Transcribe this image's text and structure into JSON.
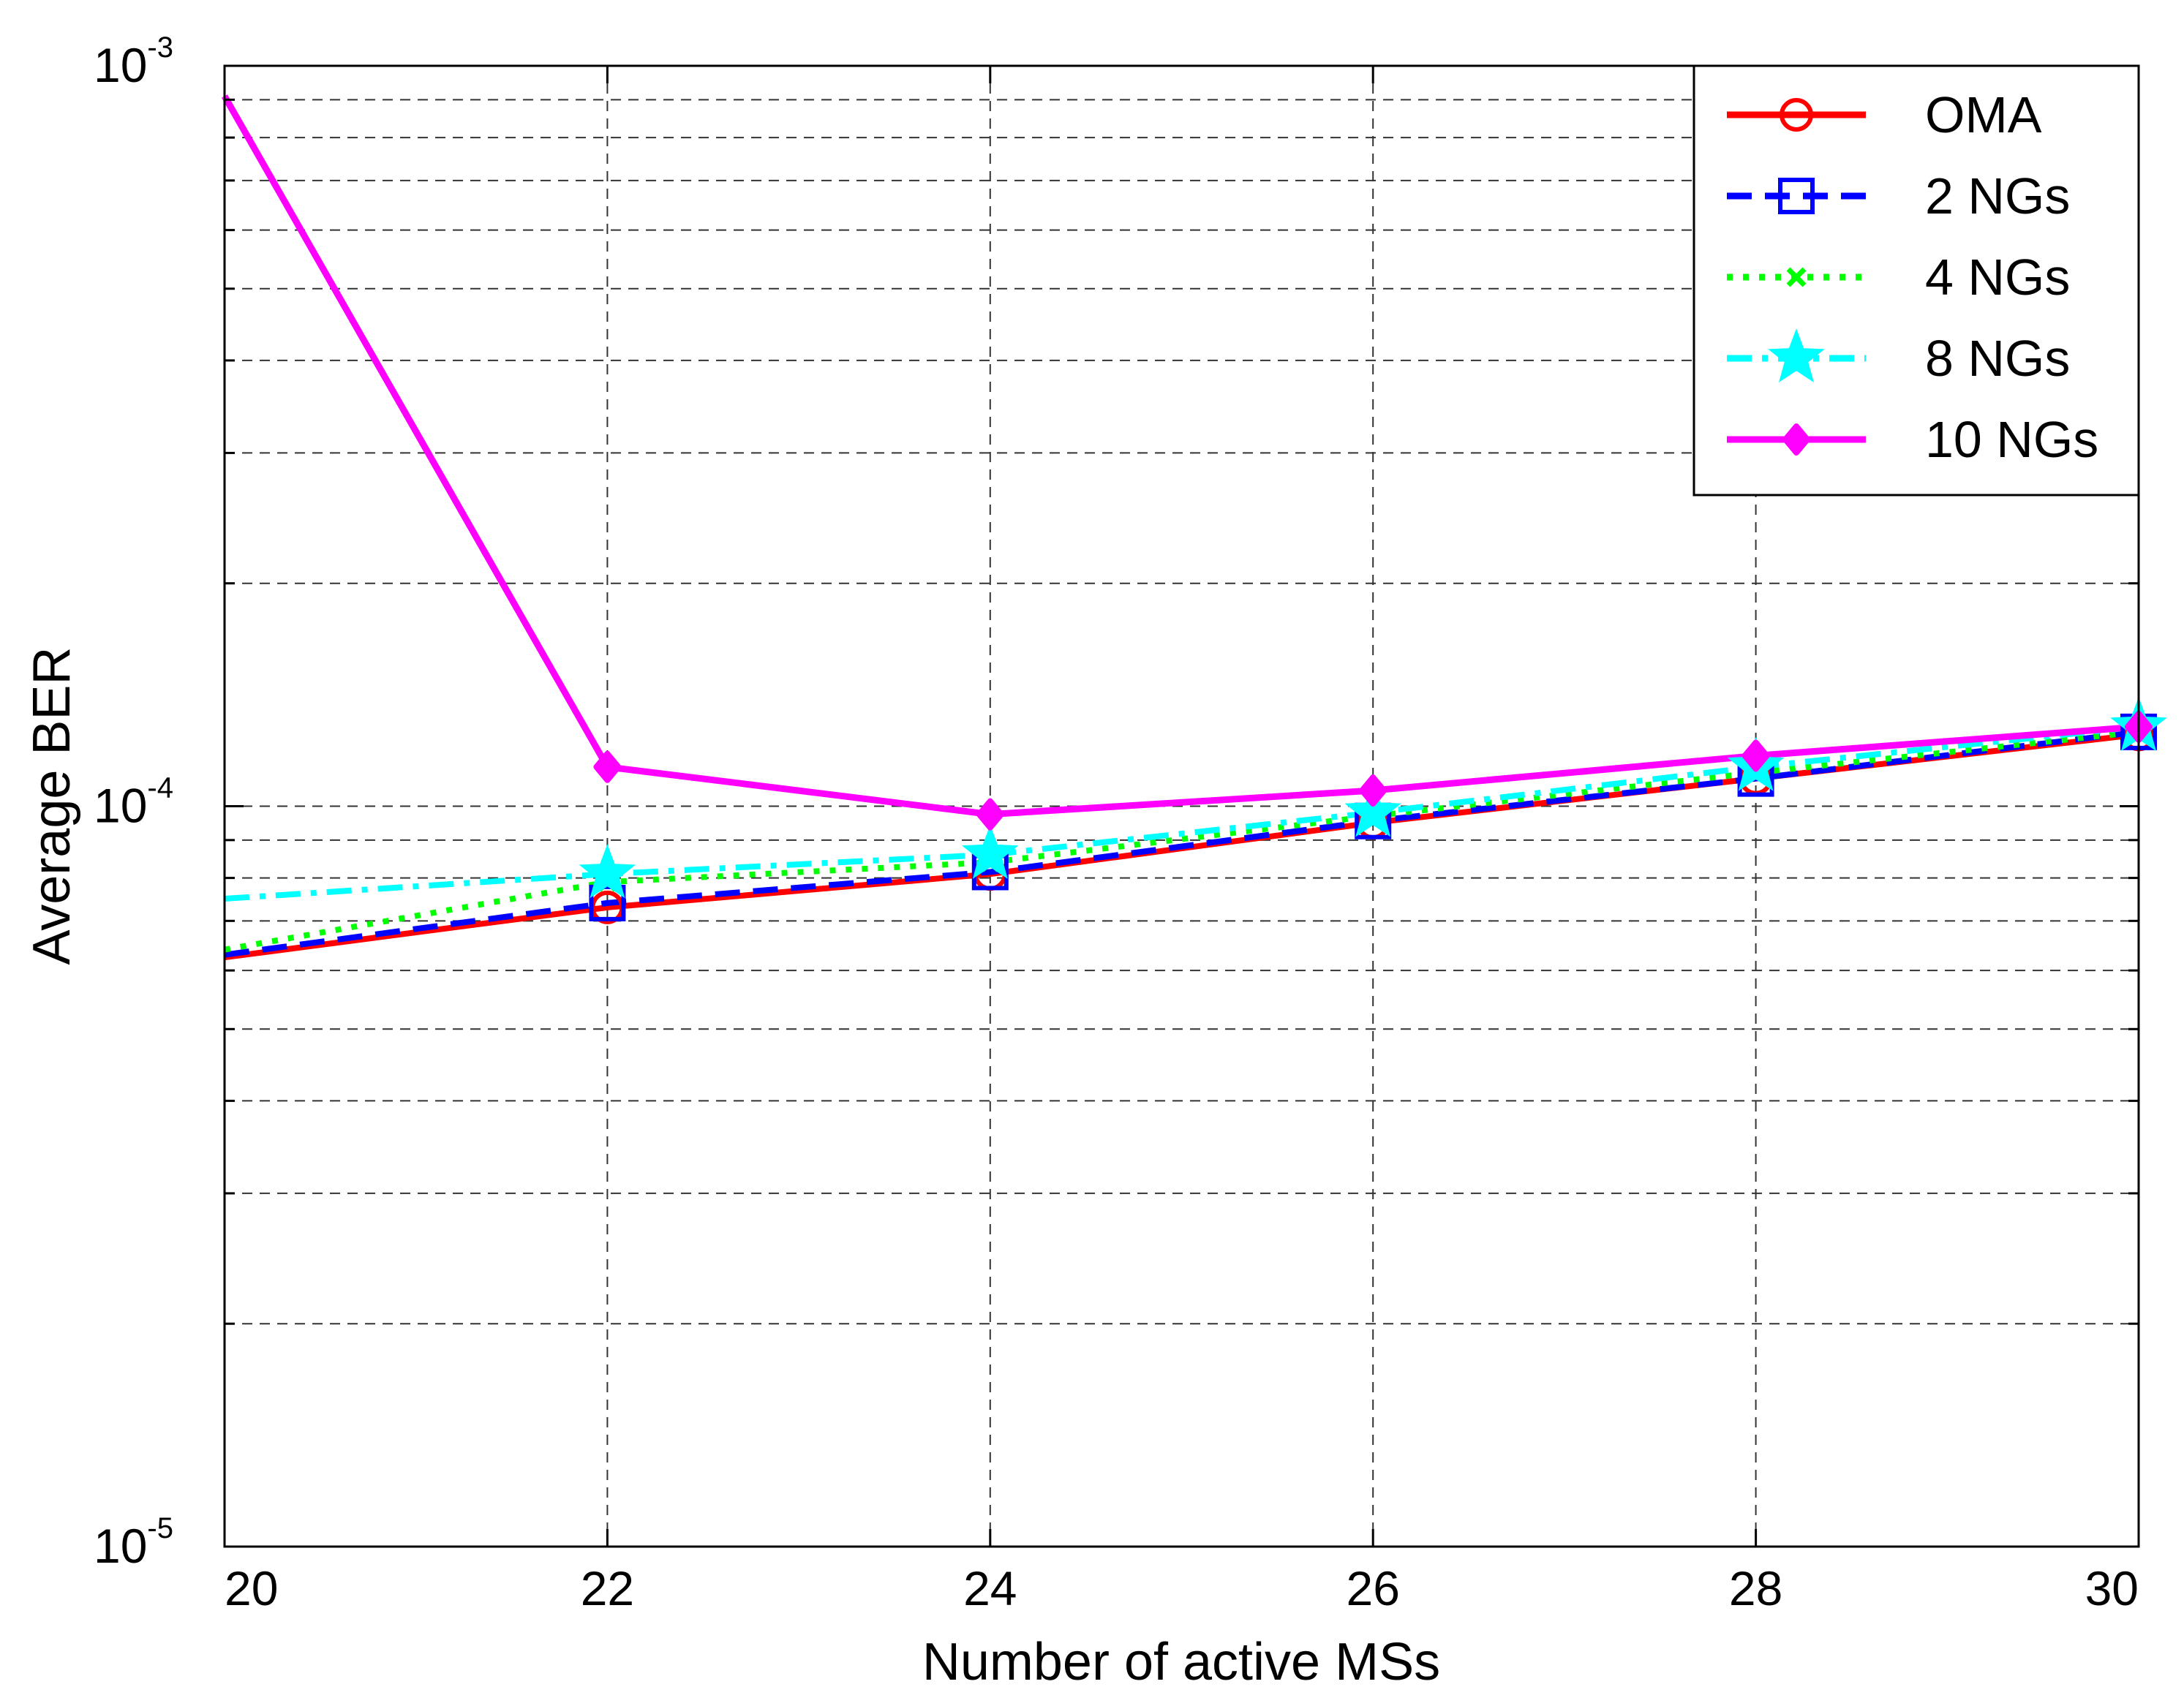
{
  "chart_data": {
    "type": "line",
    "xlabel": "Number of active MSs",
    "ylabel": "Average BER",
    "xlim": [
      20,
      30
    ],
    "ylim": [
      1e-05,
      0.001
    ],
    "yscale": "log",
    "grid": true,
    "legend_position": "top-right",
    "x_ticks": [
      "20",
      "22",
      "24",
      "26",
      "28",
      "30"
    ],
    "y_ticks": [
      {
        "base": "10",
        "exponent": "-5",
        "value": 1e-05
      },
      {
        "base": "10",
        "exponent": "-4",
        "value": 0.0001
      },
      {
        "base": "10",
        "exponent": "-3",
        "value": 0.001
      }
    ],
    "x": [
      20,
      22,
      24,
      26,
      28,
      30
    ],
    "series": [
      {
        "name": "OMA",
        "color": "#ff0000",
        "dash": "solid",
        "marker": "circle",
        "values": [
          6.25e-05,
          7.3e-05,
          8.1e-05,
          9.5e-05,
          0.000109,
          0.000125
        ]
      },
      {
        "name": "2 NGs",
        "color": "#0000ff",
        "dash": "dashed",
        "marker": "square",
        "values": [
          6.3e-05,
          7.4e-05,
          8.15e-05,
          9.55e-05,
          0.000109,
          0.000126
        ]
      },
      {
        "name": "4 NGs",
        "color": "#00ff00",
        "dash": "dotted",
        "marker": "x",
        "values": [
          6.4e-05,
          7.9e-05,
          8.4e-05,
          9.7e-05,
          0.000111,
          0.000126
        ]
      },
      {
        "name": "8 NGs",
        "color": "#00ffff",
        "dash": "dashdot",
        "marker": "star",
        "values": [
          7.5e-05,
          8.1e-05,
          8.6e-05,
          9.8e-05,
          0.000113,
          0.000128
        ]
      },
      {
        "name": "10 NGs",
        "color": "#ff00ff",
        "dash": "solid",
        "marker": "diamond",
        "values": [
          0.00091,
          0.000113,
          9.75e-05,
          0.000105,
          0.000117,
          0.000128
        ]
      }
    ]
  }
}
